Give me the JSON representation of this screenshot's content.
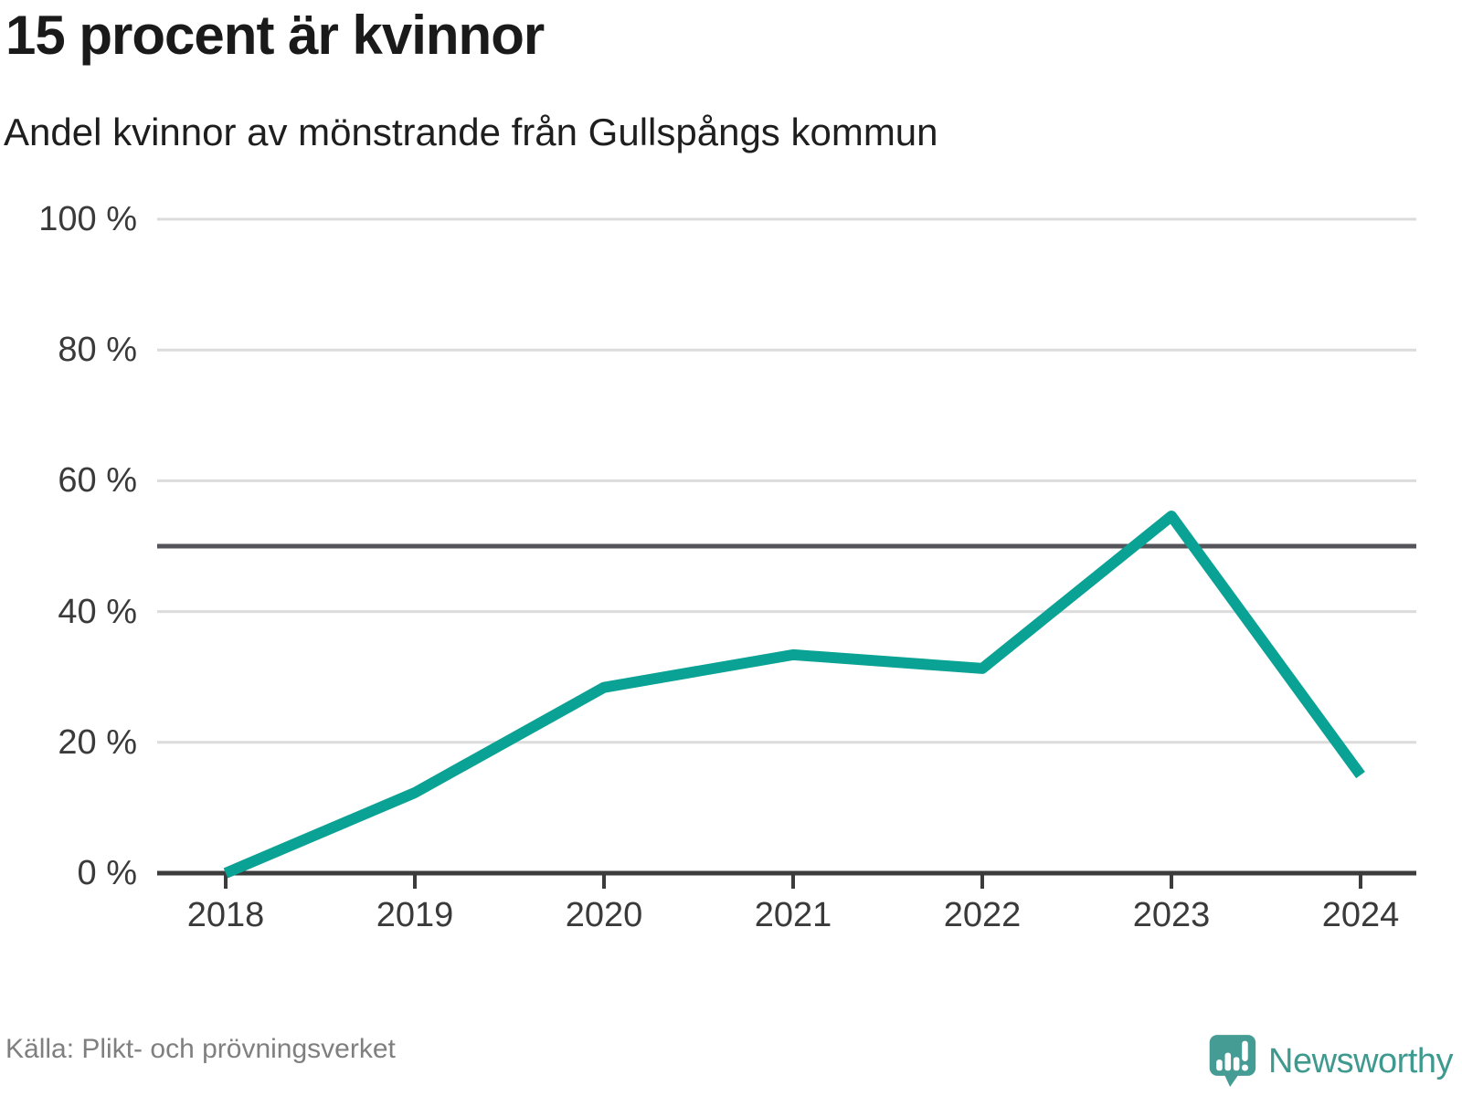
{
  "header": {
    "title": "15 procent är kvinnor",
    "subtitle": "Andel kvinnor av mönstrande från Gullspångs kommun"
  },
  "footer": {
    "source": "Källa: Plikt- och prövningsverket",
    "brand_name": "Newsworthy",
    "brand_icon": "bar-chart-speech-bubble-icon"
  },
  "colors": {
    "line": "#0AA294",
    "grid": "#DCDCDC",
    "axis": "#3C3C3C",
    "reference_line": "#54545A",
    "title_text": "#1A1A1A",
    "tick_text": "#3A3A3A",
    "source_text": "#7F7F7F",
    "brand_teal": "#3E998F",
    "logo_background": "#459C94"
  },
  "chart_data": {
    "type": "line",
    "title": "15 procent är kvinnor",
    "subtitle": "Andel kvinnor av mönstrande från Gullspångs kommun",
    "x": [
      2018,
      2019,
      2020,
      2021,
      2022,
      2023,
      2024
    ],
    "x_tick_labels": [
      "2018",
      "2019",
      "2020",
      "2021",
      "2022",
      "2023",
      "2024"
    ],
    "series": [
      {
        "name": "Andel kvinnor av mönstrande",
        "values": [
          0,
          12.3,
          28.4,
          33.4,
          31.3,
          54.6,
          15
        ]
      }
    ],
    "unit": "%",
    "ylim": [
      0,
      100
    ],
    "y_ticks": [
      0,
      20,
      40,
      60,
      80,
      100
    ],
    "y_tick_labels": [
      "0 %",
      "20 %",
      "40 %",
      "60 %",
      "80 %",
      "100 %"
    ],
    "reference_line": 50,
    "grid": "horizontal",
    "legend": "none"
  }
}
